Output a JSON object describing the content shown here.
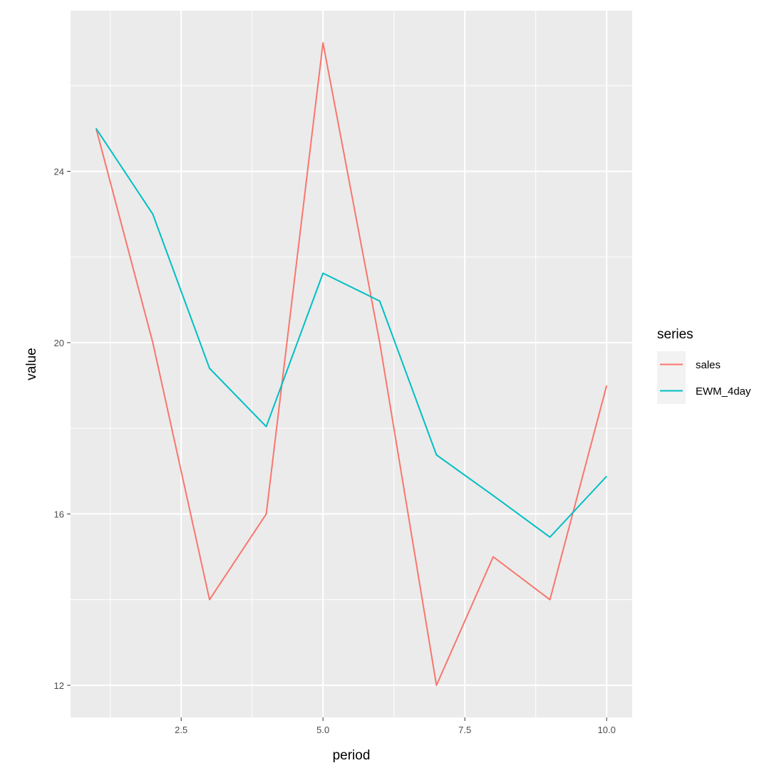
{
  "chart_data": {
    "type": "line",
    "x": [
      1,
      2,
      3,
      4,
      5,
      6,
      7,
      8,
      9,
      10
    ],
    "series": [
      {
        "name": "sales",
        "color": "#F8766D",
        "values": [
          25,
          20,
          14,
          16,
          27,
          20,
          12,
          15,
          14,
          19
        ]
      },
      {
        "name": "EWM_4day",
        "color": "#00BFC4",
        "values": [
          25,
          23,
          19.4,
          18.04,
          21.62,
          20.97,
          17.38,
          16.43,
          15.46,
          16.88
        ]
      }
    ],
    "xlabel": "period",
    "ylabel": "value",
    "xticks": [
      "2.5",
      "5.0",
      "7.5",
      "10.0"
    ],
    "yticks": [
      "12",
      "16",
      "20",
      "24"
    ],
    "xlim": [
      0.55,
      10.45
    ],
    "ylim": [
      11.25,
      27.75
    ],
    "grid": true,
    "panel_background": "#EBEBEB",
    "legend": {
      "title": "series",
      "position": "right"
    }
  }
}
